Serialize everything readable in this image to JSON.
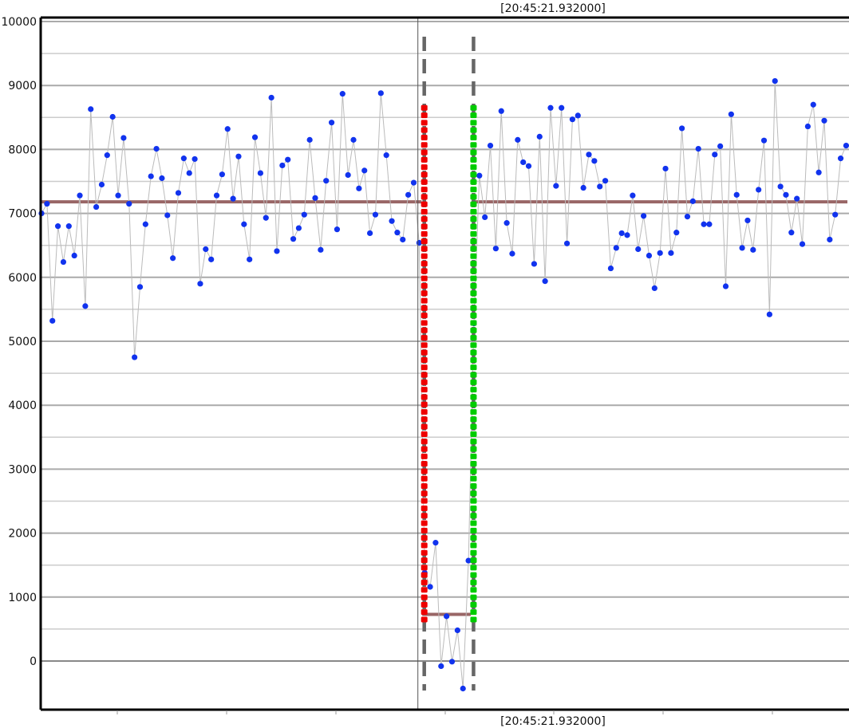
{
  "chart_data": {
    "type": "scatter",
    "title": "",
    "xlabel": "",
    "ylabel": "",
    "ylim": [
      -750,
      10000
    ],
    "yticks": [
      0,
      1000,
      2000,
      3000,
      4000,
      5000,
      6000,
      7000,
      8000,
      9000,
      10000
    ],
    "grid": true,
    "legend": "none",
    "cursor_time_top": "[20:45:21.932000]",
    "cursor_time_bottom": "[20:45:21.932000]",
    "colors": {
      "points": "#1133ee",
      "line": "#bbbbbb",
      "mean": "#996666",
      "start_marker": "#ee0000",
      "end_marker": "#00cc00",
      "dash": "#666666",
      "grid": "#cccccc",
      "axis": "#000000"
    },
    "series": [
      {
        "values": [
          7000,
          7150,
          5320,
          6800,
          6240,
          6800,
          6340,
          7280,
          5550,
          8630,
          7100,
          7450,
          7910,
          8510,
          7280,
          8180,
          7150,
          4750,
          5850,
          6830,
          7580,
          8010,
          7550,
          6970,
          6300,
          7320,
          7860,
          7630,
          7850,
          5900,
          6440,
          6280,
          7280,
          7610,
          8320,
          7230,
          7890,
          6830,
          6280,
          8190,
          7630,
          6930,
          8810,
          6410,
          7750,
          7840,
          6600,
          6770,
          6980,
          8150,
          7240,
          6430,
          7510,
          8420,
          6750,
          8870,
          7600,
          8150,
          7390,
          7670,
          6690,
          6980,
          8880,
          7910,
          6880,
          6700,
          6590,
          7290,
          7480,
          6540,
          1380,
          1160,
          1850,
          -80,
          700,
          -10,
          480,
          -430,
          1570,
          5280,
          7590,
          6940,
          8060,
          6450,
          8600,
          6850,
          6370,
          8150,
          7800,
          7740,
          6210,
          8200,
          5940,
          8650,
          7430,
          8650,
          6530,
          8470,
          8530,
          7400,
          7920,
          7820,
          7420,
          7510,
          6140,
          6460,
          6690,
          6660,
          7280,
          6440,
          6960,
          6340,
          5830,
          6380,
          7700,
          6380,
          6700,
          8330,
          6950,
          7190,
          8010,
          6830,
          6830,
          7920,
          8050,
          5860,
          8550,
          7290,
          6460,
          6890,
          6430,
          7370,
          8140,
          5420,
          9070,
          7420,
          7290,
          6700,
          7230,
          6520,
          8360,
          8700,
          7640,
          8450,
          6590,
          6980,
          7860,
          8060
        ]
      }
    ],
    "reference_lines": [
      {
        "y": 7180,
        "x_from": 0,
        "x_to": 69
      },
      {
        "y": 730,
        "x_from": 70,
        "x_to": 78
      },
      {
        "y": 7180,
        "x_from": 79,
        "x_to": 148
      }
    ],
    "segment_markers": {
      "start_index": 70,
      "end_index": 79
    }
  }
}
